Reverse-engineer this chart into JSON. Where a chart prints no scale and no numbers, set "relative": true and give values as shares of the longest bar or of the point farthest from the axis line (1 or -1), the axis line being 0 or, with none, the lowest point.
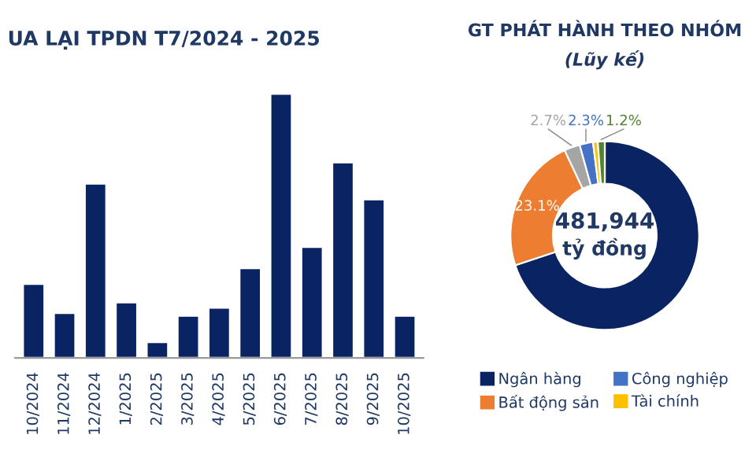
{
  "chart_data": [
    {
      "type": "bar",
      "title": "UA LẠI TPDN T7/2024 - 2025",
      "relative": true,
      "color": "#0a2463",
      "categories": [
        "10/2024",
        "11/2024",
        "12/2024",
        "1/2025",
        "2/2025",
        "3/2025",
        "4/2025",
        "5/2025",
        "6/2025",
        "7/2025",
        "8/2025",
        "9/2025",
        "10/2025"
      ],
      "values": [
        0.28,
        0.17,
        0.66,
        0.21,
        0.06,
        0.16,
        0.19,
        0.34,
        1,
        0.42,
        0.74,
        0.6,
        0.16
      ]
    },
    {
      "type": "donut",
      "title": "GT PHÁT HÀNH THEO NHÓM",
      "subtitle": "(Lũy kế)",
      "annotations": [
        "481,944",
        "tỷ đồng"
      ],
      "categories": [
        "Ngân hàng",
        "Bất động sản",
        null,
        "Công nghiệp",
        "Tài chính",
        null
      ],
      "values": [
        69.9,
        23.1,
        2.7,
        2.3,
        0.8,
        1.2
      ],
      "colors": [
        "#0a2463",
        "#ed7d31",
        "#a5a5a5",
        "#4472c4",
        "#ffc000",
        "#548235"
      ],
      "value_labels": [
        null,
        "23.1%",
        "2.7%",
        "2.3%",
        null,
        "1.2%"
      ],
      "legend": "bottom"
    }
  ]
}
